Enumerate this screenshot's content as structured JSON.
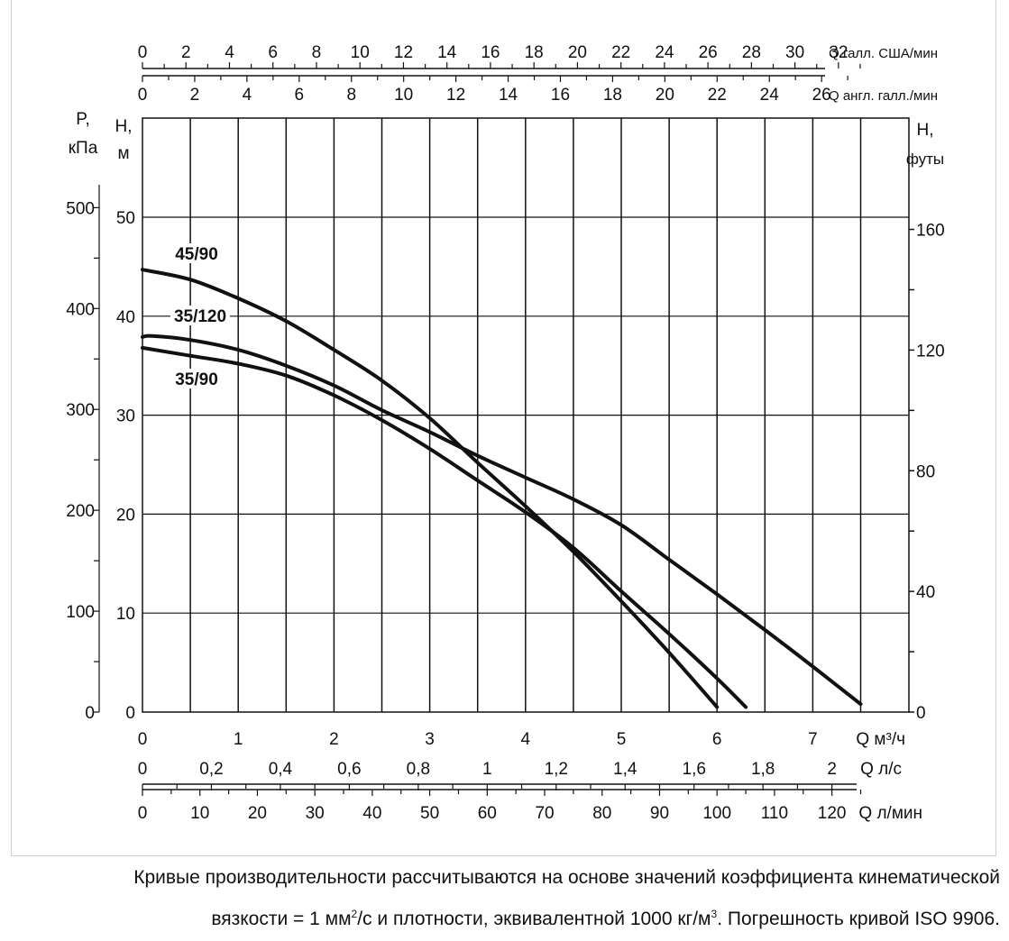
{
  "chart_data": {
    "type": "line",
    "title": "",
    "colors": {
      "line": "#111111",
      "grid": "#111111",
      "frame": "#cfcfcf"
    },
    "axes": {
      "x_bottom_m3h": {
        "label": "Q м³/ч",
        "range": [
          0,
          7.5
        ],
        "ticks": [
          "0",
          "1",
          "2",
          "3",
          "4",
          "5",
          "6",
          "7"
        ],
        "tick_values": [
          0,
          1,
          2,
          3,
          4,
          5,
          6,
          7
        ]
      },
      "x_ls": {
        "label": "Q л/с",
        "range_m3h": [
          0,
          7.5
        ],
        "ticks": [
          "0",
          "0,2",
          "0,4",
          "0,6",
          "0,8",
          "1",
          "1,2",
          "1,4",
          "1,6",
          "1,8",
          "2"
        ],
        "tick_values": [
          0,
          0.2,
          0.4,
          0.6,
          0.8,
          1.0,
          1.2,
          1.4,
          1.6,
          1.8,
          2.0
        ]
      },
      "x_lmin": {
        "label": "Q л/мин",
        "range_m3h": [
          0,
          7.5
        ],
        "ticks": [
          "0",
          "10",
          "20",
          "30",
          "40",
          "50",
          "60",
          "70",
          "80",
          "90",
          "100",
          "110",
          "120"
        ],
        "tick_values": [
          0,
          10,
          20,
          30,
          40,
          50,
          60,
          70,
          80,
          90,
          100,
          110,
          120
        ]
      },
      "x_top_us": {
        "label": "Q галл. США/мин",
        "ticks": [
          "0",
          "2",
          "4",
          "6",
          "8",
          "10",
          "12",
          "14",
          "16",
          "18",
          "20",
          "22",
          "24",
          "26",
          "28",
          "30",
          "32"
        ],
        "tick_values": [
          0,
          2,
          4,
          6,
          8,
          10,
          12,
          14,
          16,
          18,
          20,
          22,
          24,
          26,
          28,
          30,
          32
        ]
      },
      "x_top_uk": {
        "label": "Q англ. галл./мин",
        "ticks": [
          "0",
          "2",
          "4",
          "6",
          "8",
          "10",
          "12",
          "14",
          "16",
          "18",
          "20",
          "22",
          "24",
          "26"
        ],
        "tick_values": [
          0,
          2,
          4,
          6,
          8,
          10,
          12,
          14,
          16,
          18,
          20,
          22,
          24,
          26
        ]
      },
      "y_left_m": {
        "label_line1": "H,",
        "label_line2": "м",
        "range": [
          0,
          60
        ],
        "ticks": [
          "0",
          "10",
          "20",
          "30",
          "40",
          "50"
        ],
        "tick_values": [
          0,
          10,
          20,
          30,
          40,
          50
        ]
      },
      "y_left_kpa": {
        "label_line1": "P,",
        "label_line2": "кПа",
        "ticks": [
          "0",
          "100",
          "200",
          "300",
          "400",
          "500"
        ],
        "tick_values": [
          0,
          100,
          200,
          300,
          400,
          500
        ]
      },
      "y_right_ft": {
        "label_line1": "H,",
        "label_line2": "футы",
        "ticks": [
          "0",
          "40",
          "80",
          "120",
          "160"
        ],
        "tick_values": [
          0,
          40,
          80,
          120,
          160
        ],
        "minor_values": [
          20,
          60,
          100,
          140
        ]
      }
    },
    "grid": true,
    "series": [
      {
        "name": "45/90",
        "x": [
          0,
          0.5,
          1.0,
          1.5,
          2.0,
          2.5,
          3.0,
          3.5,
          4.0,
          4.5,
          5.0,
          5.5,
          6.0
        ],
        "y": [
          44.7,
          43.7,
          41.8,
          39.5,
          36.6,
          33.5,
          29.7,
          25.2,
          20.8,
          16.2,
          11.2,
          6.0,
          0.5
        ]
      },
      {
        "name": "35/120",
        "x": [
          0,
          0.1,
          0.5,
          1.0,
          1.5,
          2.0,
          2.5,
          3.0,
          3.5,
          4.0,
          4.5,
          5.0,
          5.5,
          6.0,
          6.5,
          7.0,
          7.5
        ],
        "y": [
          37.9,
          38.0,
          37.6,
          36.6,
          35.0,
          33.0,
          30.5,
          28.3,
          25.9,
          23.7,
          21.5,
          18.9,
          15.4,
          11.9,
          8.3,
          4.6,
          0.8
        ]
      },
      {
        "name": "35/90",
        "x": [
          0,
          0.5,
          1.0,
          1.5,
          2.0,
          2.5,
          3.0,
          3.5,
          4.0,
          4.5,
          5.0,
          5.5,
          6.0,
          6.3
        ],
        "y": [
          36.8,
          36.0,
          35.2,
          34.0,
          32.0,
          29.5,
          26.6,
          23.4,
          20.2,
          16.6,
          12.2,
          7.9,
          3.4,
          0.5
        ]
      }
    ]
  },
  "caption": {
    "line1": "Кривые производительности рассчитываются на основе значений коэффициента кинематической",
    "line2_part1": "вязкости = 1 мм",
    "line2_sup1": "2",
    "line2_part2": "/с и плотности, эквивалентной 1000 кг/м",
    "line2_sup2": "3",
    "line2_part3": ". Погрешность кривой ISO 9906."
  }
}
